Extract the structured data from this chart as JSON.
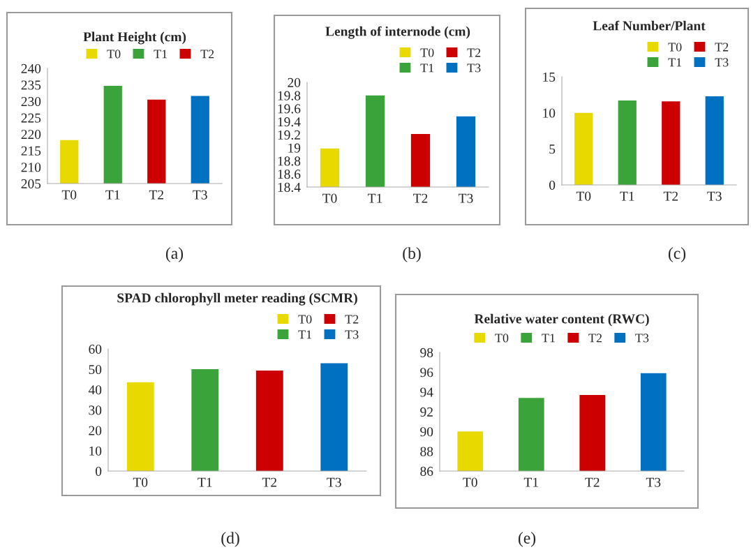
{
  "chart_data": [
    {
      "type": "bar",
      "title": "Plant Height (cm)",
      "categories": [
        "T0",
        "T1",
        "T2",
        "T3"
      ],
      "series": [
        {
          "name": "T0",
          "color": "#e8d900",
          "values": [
            218.2,
            null,
            null,
            null
          ]
        },
        {
          "name": "T1",
          "color": "#3aa43a",
          "values": [
            null,
            234.7,
            null,
            null
          ]
        },
        {
          "name": "T2",
          "color": "#cc0000",
          "values": [
            null,
            null,
            230.5,
            null
          ]
        },
        {
          "color": "#0070c0",
          "values": [
            null,
            null,
            null,
            231.6
          ]
        }
      ],
      "ylim": [
        205,
        240
      ],
      "yticks": [
        205,
        210,
        215,
        220,
        225,
        230,
        235,
        240
      ],
      "legend": "top right",
      "annotations": [
        "(a)"
      ]
    },
    {
      "type": "bar",
      "title": "Length of internode (cm)",
      "categories": [
        "T0",
        "T1",
        "T2",
        "T3"
      ],
      "series": [
        {
          "name": "T0",
          "color": "#e8d900",
          "values": [
            18.99,
            null,
            null,
            null
          ]
        },
        {
          "name": "T1",
          "color": "#3aa43a",
          "values": [
            null,
            19.8,
            null,
            null
          ]
        },
        {
          "name": "T2",
          "color": "#cc0000",
          "values": [
            null,
            null,
            19.21,
            null
          ]
        },
        {
          "name": "T3",
          "color": "#0070c0",
          "values": [
            null,
            null,
            null,
            19.48
          ]
        }
      ],
      "ylim": [
        18.4,
        20
      ],
      "yticks": [
        {
          "value": 18.4,
          "label": "18.4"
        },
        {
          "value": 18.6,
          "label": "18.6"
        },
        {
          "value": 18.8,
          "label": "18.8"
        },
        {
          "value": 19,
          "label": "19"
        },
        {
          "value": 19.2,
          "label": "19.2"
        },
        {
          "value": 19.4,
          "label": "19.4"
        },
        {
          "value": 19.6,
          "label": "19.6"
        },
        {
          "value": 19.8,
          "label": "19.8"
        },
        {
          "value": 20,
          "label": "20"
        }
      ],
      "legend": "top right",
      "annotations": [
        "(b)"
      ]
    },
    {
      "type": "bar",
      "title": "Leaf Number/Plant",
      "categories": [
        "T0",
        "T1",
        "T2",
        "T3"
      ],
      "series": [
        {
          "name": "T0",
          "color": "#e8d900",
          "values": [
            10.0,
            null,
            null,
            null
          ]
        },
        {
          "name": "T1",
          "color": "#3aa43a",
          "values": [
            null,
            11.7,
            null,
            null
          ]
        },
        {
          "name": "T2",
          "color": "#cc0000",
          "values": [
            null,
            null,
            11.6,
            null
          ]
        },
        {
          "name": "T3",
          "color": "#0070c0",
          "values": [
            null,
            null,
            null,
            12.3
          ]
        }
      ],
      "ylim": [
        0,
        15
      ],
      "yticks": [
        0,
        5,
        10,
        15
      ],
      "legend": "top right",
      "annotations": [
        "(c)"
      ]
    },
    {
      "type": "bar",
      "title": "SPAD chlorophyll meter reading (SCMR)",
      "categories": [
        "T0",
        "T1",
        "T2",
        "T3"
      ],
      "series": [
        {
          "name": "T0",
          "color": "#e8d900",
          "values": [
            43.6,
            null,
            null,
            null
          ]
        },
        {
          "name": "T1",
          "color": "#3aa43a",
          "values": [
            null,
            50.1,
            null,
            null
          ]
        },
        {
          "name": "T2",
          "color": "#cc0000",
          "values": [
            null,
            null,
            49.4,
            null
          ]
        },
        {
          "name": "T3",
          "color": "#0070c0",
          "values": [
            null,
            null,
            null,
            53.0
          ]
        }
      ],
      "ylim": [
        0,
        60
      ],
      "yticks": [
        0,
        10,
        20,
        30,
        40,
        50,
        60
      ],
      "legend": "top right",
      "annotations": [
        "(d)"
      ]
    },
    {
      "type": "bar",
      "title": "Relative water content (RWC)",
      "categories": [
        "T0",
        "T1",
        "T2",
        "T3"
      ],
      "series": [
        {
          "name": "T0",
          "color": "#e8d900",
          "values": [
            90.0,
            null,
            null,
            null
          ]
        },
        {
          "name": "T1",
          "color": "#3aa43a",
          "values": [
            null,
            93.4,
            null,
            null
          ]
        },
        {
          "name": "T2",
          "color": "#cc0000",
          "values": [
            null,
            null,
            93.7,
            null
          ]
        },
        {
          "name": "T3",
          "color": "#0070c0",
          "values": [
            null,
            null,
            null,
            95.9
          ]
        }
      ],
      "ylim": [
        86,
        98
      ],
      "yticks": [
        86,
        88,
        90,
        92,
        94,
        96,
        98
      ],
      "legend": "top",
      "annotations": [
        "(e)"
      ]
    }
  ]
}
